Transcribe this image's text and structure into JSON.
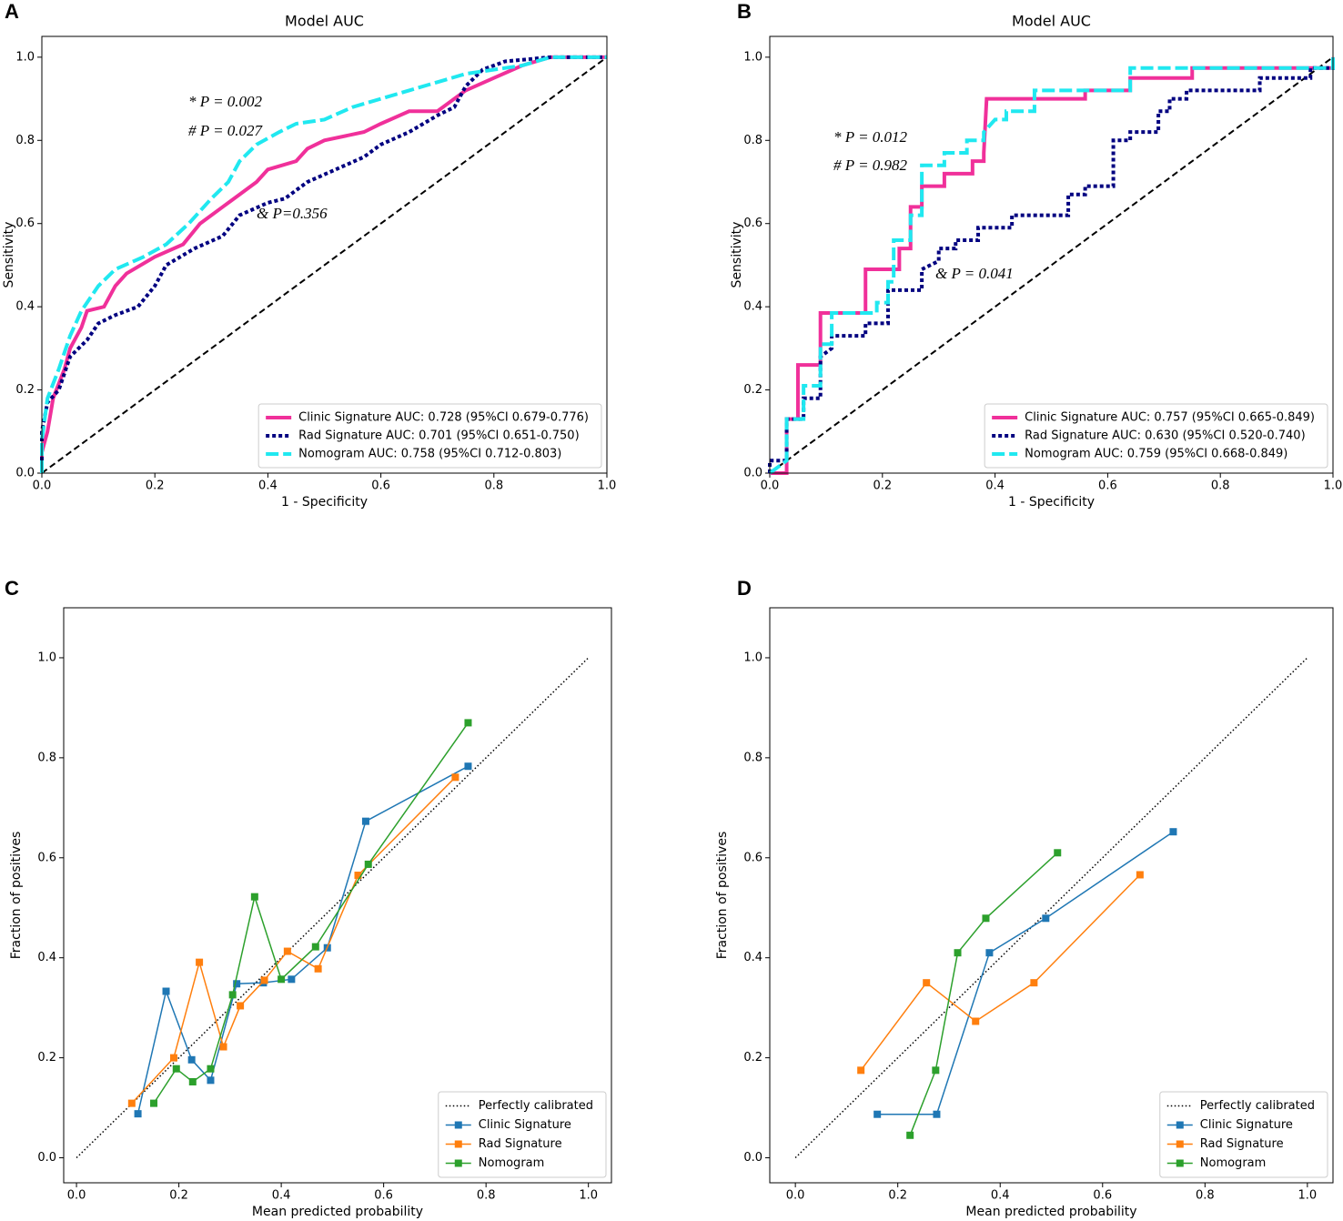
{
  "chart_data": [
    {
      "type": "roc",
      "panel_label": "A",
      "title": "Model AUC",
      "x_label": "1 - Specificity",
      "y_label": "Sensitivity",
      "xlim": [
        0,
        1
      ],
      "ylim": [
        0,
        1.05
      ],
      "xticks": [
        {
          "value": 0,
          "label": "0.0"
        },
        0.2,
        0.4,
        0.6,
        0.8,
        {
          "value": 1,
          "label": "1.0"
        }
      ],
      "yticks": [
        {
          "value": 0,
          "label": "0.0"
        },
        0.2,
        0.4,
        0.6,
        0.8,
        {
          "value": 1,
          "label": "1.0"
        }
      ],
      "legend": "lower right",
      "annotations": [
        "* P = 0.002",
        "# P = 0.027",
        "& P=0.356"
      ],
      "series": [
        {
          "name": "Clinic Signature AUC: 0.728 (95%CI 0.679-0.776)",
          "color": "#f0309a",
          "style": "solid",
          "x": [
            0,
            0,
            0.01,
            0.02,
            0.04,
            0.05,
            0.07,
            0.08,
            0.11,
            0.13,
            0.15,
            0.2,
            0.25,
            0.28,
            0.32,
            0.35,
            0.38,
            0.4,
            0.45,
            0.47,
            0.5,
            0.57,
            0.6,
            0.65,
            0.7,
            0.75,
            0.8,
            0.85,
            0.9,
            1
          ],
          "values": [
            0,
            0.05,
            0.1,
            0.18,
            0.25,
            0.3,
            0.35,
            0.39,
            0.4,
            0.45,
            0.48,
            0.52,
            0.55,
            0.6,
            0.64,
            0.67,
            0.7,
            0.73,
            0.75,
            0.78,
            0.8,
            0.82,
            0.84,
            0.87,
            0.87,
            0.92,
            0.95,
            0.98,
            1,
            1
          ]
        },
        {
          "name": "Rad Signature AUC: 0.701 (95%CI 0.651-0.750)",
          "color": "#000080",
          "style": "dotted",
          "x": [
            0,
            0,
            0.01,
            0.03,
            0.05,
            0.08,
            0.1,
            0.13,
            0.17,
            0.2,
            0.22,
            0.27,
            0.32,
            0.35,
            0.4,
            0.43,
            0.47,
            0.52,
            0.57,
            0.6,
            0.65,
            0.7,
            0.73,
            0.75,
            0.78,
            0.82,
            0.9,
            1
          ],
          "values": [
            0,
            0.1,
            0.17,
            0.2,
            0.28,
            0.32,
            0.36,
            0.38,
            0.4,
            0.45,
            0.5,
            0.54,
            0.57,
            0.62,
            0.65,
            0.66,
            0.7,
            0.73,
            0.76,
            0.79,
            0.82,
            0.86,
            0.88,
            0.93,
            0.97,
            0.99,
            1,
            1
          ]
        },
        {
          "name": "Nomogram AUC: 0.758 (95%CI 0.712-0.803)",
          "color": "#20e8f0",
          "style": "dashed",
          "x": [
            0,
            0,
            0.01,
            0.03,
            0.05,
            0.07,
            0.1,
            0.13,
            0.18,
            0.22,
            0.26,
            0.3,
            0.33,
            0.35,
            0.38,
            0.42,
            0.45,
            0.5,
            0.55,
            0.6,
            0.65,
            0.7,
            0.75,
            0.85,
            0.9,
            1
          ],
          "values": [
            0,
            0.08,
            0.18,
            0.25,
            0.33,
            0.39,
            0.45,
            0.49,
            0.52,
            0.55,
            0.6,
            0.66,
            0.7,
            0.75,
            0.79,
            0.82,
            0.84,
            0.85,
            0.88,
            0.9,
            0.92,
            0.94,
            0.96,
            0.98,
            1,
            1
          ]
        }
      ]
    },
    {
      "type": "roc",
      "panel_label": "B",
      "title": "Model AUC",
      "x_label": "1 - Specificity",
      "y_label": "Sensitivity",
      "xlim": [
        0,
        1
      ],
      "ylim": [
        0,
        1.05
      ],
      "xticks": [
        {
          "value": 0,
          "label": "0.0"
        },
        0.2,
        0.4,
        0.6,
        0.8,
        {
          "value": 1,
          "label": "1.0"
        }
      ],
      "yticks": [
        {
          "value": 0,
          "label": "0.0"
        },
        0.2,
        0.4,
        0.6,
        0.8,
        {
          "value": 1,
          "label": "1.0"
        }
      ],
      "legend": "lower right",
      "annotations": [
        "* P = 0.012",
        "# P = 0.982",
        "& P = 0.041"
      ],
      "series": [
        {
          "name": "Clinic Signature AUC: 0.757 (95%CI 0.665-0.849)",
          "color": "#f0309a",
          "style": "solid",
          "x": [
            0,
            0.03,
            0.03,
            0.05,
            0.05,
            0.09,
            0.09,
            0.17,
            0.17,
            0.23,
            0.23,
            0.25,
            0.25,
            0.27,
            0.27,
            0.31,
            0.31,
            0.36,
            0.36,
            0.38,
            0.38,
            0.385,
            0.56,
            0.56,
            0.64,
            0.64,
            0.75,
            0.75,
            1,
            1
          ],
          "values": [
            0,
            0,
            0.13,
            0.13,
            0.26,
            0.26,
            0.385,
            0.385,
            0.49,
            0.49,
            0.54,
            0.54,
            0.64,
            0.64,
            0.69,
            0.69,
            0.72,
            0.72,
            0.75,
            0.75,
            0.77,
            0.9,
            0.9,
            0.92,
            0.92,
            0.95,
            0.95,
            0.974,
            0.974,
            1
          ]
        },
        {
          "name": "Rad Signature AUC: 0.630 (95%CI 0.520-0.740)",
          "color": "#000080",
          "style": "dotted",
          "x": [
            0,
            0,
            0.03,
            0.03,
            0.06,
            0.06,
            0.09,
            0.09,
            0.11,
            0.11,
            0.17,
            0.17,
            0.21,
            0.21,
            0.27,
            0.27,
            0.3,
            0.3,
            0.33,
            0.33,
            0.37,
            0.37,
            0.43,
            0.43,
            0.53,
            0.53,
            0.56,
            0.56,
            0.61,
            0.61,
            0.64,
            0.64,
            0.69,
            0.69,
            0.71,
            0.71,
            0.74,
            0.74,
            0.87,
            0.87,
            0.96,
            0.96,
            1,
            1
          ],
          "values": [
            0,
            0.03,
            0.03,
            0.13,
            0.13,
            0.18,
            0.18,
            0.28,
            0.3,
            0.33,
            0.33,
            0.36,
            0.36,
            0.44,
            0.44,
            0.49,
            0.51,
            0.54,
            0.54,
            0.56,
            0.56,
            0.59,
            0.59,
            0.62,
            0.62,
            0.67,
            0.67,
            0.69,
            0.69,
            0.8,
            0.8,
            0.82,
            0.82,
            0.87,
            0.87,
            0.9,
            0.9,
            0.92,
            0.92,
            0.95,
            0.95,
            0.974,
            0.974,
            1
          ]
        },
        {
          "name": "Nomogram AUC: 0.759 (95%CI 0.668-0.849)",
          "color": "#20e8f0",
          "style": "dashed",
          "x": [
            0,
            0.03,
            0.03,
            0.06,
            0.06,
            0.09,
            0.09,
            0.11,
            0.11,
            0.19,
            0.19,
            0.21,
            0.21,
            0.22,
            0.22,
            0.25,
            0.25,
            0.27,
            0.27,
            0.31,
            0.31,
            0.35,
            0.35,
            0.38,
            0.38,
            0.4,
            0.42,
            0.42,
            0.47,
            0.47,
            0.64,
            0.64,
            1,
            1
          ],
          "values": [
            0,
            0.03,
            0.13,
            0.13,
            0.21,
            0.21,
            0.31,
            0.31,
            0.385,
            0.385,
            0.41,
            0.41,
            0.46,
            0.46,
            0.56,
            0.56,
            0.62,
            0.62,
            0.74,
            0.74,
            0.77,
            0.77,
            0.8,
            0.8,
            0.82,
            0.85,
            0.85,
            0.87,
            0.87,
            0.92,
            0.92,
            0.974,
            0.974,
            1
          ]
        }
      ]
    },
    {
      "type": "calibration",
      "panel_label": "C",
      "x_label": "Mean predicted probability",
      "y_label": "Fraction of positives",
      "xlim": [
        -0.025,
        1.045
      ],
      "ylim": [
        -0.05,
        1.1
      ],
      "xticks": [
        {
          "value": 0,
          "label": "0.0"
        },
        0.2,
        0.4,
        0.6,
        0.8,
        {
          "value": 1,
          "label": "1.0"
        }
      ],
      "yticks": [
        {
          "value": 0,
          "label": "0.0"
        },
        0.2,
        0.4,
        0.6,
        0.8,
        {
          "value": 1,
          "label": "1.0"
        }
      ],
      "legend": "lower right",
      "reference_name": "Perfectly calibrated",
      "series": [
        {
          "name": "Clinic Signature",
          "color": "#1f77b4",
          "x": [
            0.12,
            0.175,
            0.225,
            0.262,
            0.313,
            0.365,
            0.42,
            0.49,
            0.565,
            0.765
          ],
          "values": [
            0.088,
            0.333,
            0.196,
            0.155,
            0.348,
            0.35,
            0.357,
            0.42,
            0.673,
            0.783
          ]
        },
        {
          "name": "Rad Signature",
          "color": "#ff7f0e",
          "x": [
            0.108,
            0.19,
            0.24,
            0.287,
            0.32,
            0.367,
            0.412,
            0.472,
            0.55,
            0.74
          ],
          "values": [
            0.109,
            0.2,
            0.391,
            0.222,
            0.304,
            0.355,
            0.413,
            0.378,
            0.565,
            0.761
          ]
        },
        {
          "name": "Nomogram",
          "color": "#2ca02c",
          "x": [
            0.151,
            0.195,
            0.227,
            0.262,
            0.305,
            0.348,
            0.4,
            0.467,
            0.57,
            0.765
          ],
          "values": [
            0.109,
            0.178,
            0.152,
            0.178,
            0.326,
            0.522,
            0.357,
            0.422,
            0.587,
            0.87
          ]
        }
      ]
    },
    {
      "type": "calibration",
      "panel_label": "D",
      "x_label": "Mean predicted probability",
      "y_label": "Fraction of positives",
      "xlim": [
        -0.05,
        1.05
      ],
      "ylim": [
        -0.05,
        1.1
      ],
      "xticks": [
        {
          "value": 0,
          "label": "0.0"
        },
        0.2,
        0.4,
        0.6,
        0.8,
        {
          "value": 1,
          "label": "1.0"
        }
      ],
      "yticks": [
        {
          "value": 0,
          "label": "0.0"
        },
        0.2,
        0.4,
        0.6,
        0.8,
        {
          "value": 1,
          "label": "1.0"
        }
      ],
      "legend": "lower right",
      "reference_name": "Perfectly calibrated",
      "series": [
        {
          "name": "Clinic Signature",
          "color": "#1f77b4",
          "x": [
            0.16,
            0.276,
            0.379,
            0.489,
            0.738
          ],
          "values": [
            0.087,
            0.087,
            0.41,
            0.479,
            0.652
          ]
        },
        {
          "name": "Rad Signature",
          "color": "#ff7f0e",
          "x": [
            0.128,
            0.256,
            0.352,
            0.466,
            0.673
          ],
          "values": [
            0.175,
            0.35,
            0.273,
            0.35,
            0.566
          ]
        },
        {
          "name": "Nomogram",
          "color": "#2ca02c",
          "x": [
            0.224,
            0.274,
            0.317,
            0.372,
            0.512
          ],
          "values": [
            0.045,
            0.175,
            0.41,
            0.479,
            0.61
          ]
        }
      ]
    }
  ]
}
